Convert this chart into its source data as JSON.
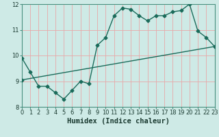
{
  "title": "",
  "xlabel": "Humidex (Indice chaleur)",
  "ylabel": "",
  "background_color": "#ceeae6",
  "grid_color": "#e8a8a8",
  "line_color": "#1a6b5a",
  "x_min": 0,
  "x_max": 23,
  "y_min": 8,
  "y_max": 12,
  "line1_x": [
    0,
    1,
    2,
    3,
    4,
    5,
    6,
    7,
    8,
    9,
    10,
    11,
    12,
    13,
    14,
    15,
    16,
    17,
    18,
    19,
    20,
    21,
    22,
    23
  ],
  "line1_y": [
    9.9,
    9.35,
    8.8,
    8.8,
    8.55,
    8.3,
    8.65,
    9.0,
    8.9,
    10.4,
    10.7,
    11.55,
    11.85,
    11.8,
    11.55,
    11.35,
    11.55,
    11.55,
    11.7,
    11.75,
    12.0,
    10.95,
    10.7,
    10.35
  ],
  "line2_x": [
    0,
    23
  ],
  "line2_y": [
    9.05,
    10.35
  ],
  "marker": "D",
  "marker_size": 2.5,
  "line_width": 1.0,
  "tick_fontsize": 6,
  "xlabel_fontsize": 7.5
}
